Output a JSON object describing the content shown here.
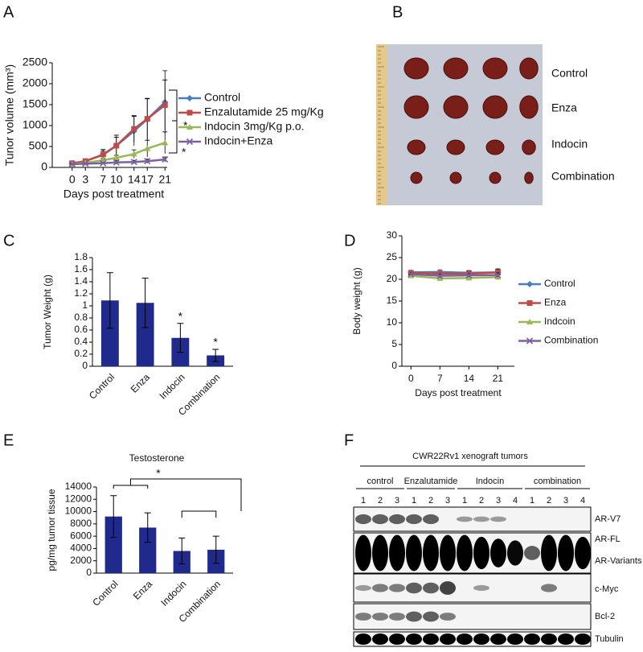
{
  "chart_data": [
    {
      "type": "line",
      "label": "A",
      "ylabel": "Tunor volume (mm³)",
      "xlabel": "Days post treatment",
      "x": [
        0,
        3,
        7,
        10,
        14,
        17,
        21
      ],
      "xlim": [
        -4.5,
        21.5
      ],
      "xticks": [
        0,
        3,
        7,
        10,
        14,
        17,
        21
      ],
      "ylim": [
        0,
        2500
      ],
      "yticks": [
        0,
        500,
        1000,
        1500,
        2000,
        2500
      ],
      "series": [
        {
          "name": "Control",
          "color": "#4a7ebb",
          "values": [
            100,
            150,
            300,
            520,
            870,
            1150,
            1560
          ],
          "errors": [
            20,
            30,
            100,
            200,
            350,
            500,
            750
          ]
        },
        {
          "name": "Enzalutamide 25 mg/Kg",
          "color": "#be4b48",
          "values": [
            100,
            150,
            310,
            520,
            920,
            1160,
            1490
          ],
          "errors": [
            20,
            30,
            120,
            250,
            320,
            480,
            600
          ]
        },
        {
          "name": "Indocin 3mg/Kg p.o.",
          "color": "#98b954",
          "values": [
            80,
            110,
            170,
            230,
            320,
            450,
            590
          ],
          "errors": [
            10,
            20,
            40,
            60,
            100,
            200,
            260
          ]
        },
        {
          "name": "Indocin+Enza",
          "color": "#7d60a0",
          "values": [
            80,
            90,
            100,
            120,
            130,
            150,
            190
          ],
          "errors": [
            10,
            20,
            20,
            40,
            40,
            50,
            60
          ]
        }
      ],
      "annotations": [
        "*",
        "*"
      ],
      "legend": "right"
    },
    {
      "type": "bar",
      "label": "C",
      "ylabel": "Tumor Weight (g)",
      "color": "#1f2a8c",
      "categories": [
        "Control",
        "Enza",
        "Indocin",
        "Combination"
      ],
      "values": [
        1.09,
        1.05,
        0.47,
        0.18
      ],
      "errors": [
        0.46,
        0.41,
        0.24,
        0.1
      ],
      "ylim": [
        0,
        1.8
      ],
      "yticks": [
        0,
        0.2,
        0.4,
        0.6,
        0.8,
        1,
        1.2,
        1.4,
        1.6,
        1.8
      ],
      "annotations": [
        "*",
        "*"
      ]
    },
    {
      "type": "line",
      "label": "D",
      "ylabel": "Body weight (g)",
      "xlabel": "Days post treatment",
      "x": [
        0,
        7,
        14,
        21
      ],
      "xlim": [
        -2.2,
        25
      ],
      "xticks": [
        0,
        7,
        14,
        21
      ],
      "ylim": [
        0,
        30
      ],
      "yticks": [
        0,
        5,
        10,
        15,
        20,
        25,
        30
      ],
      "series": [
        {
          "name": "Control",
          "color": "#4a7ebb",
          "values": [
            21.6,
            21.7,
            21.5,
            21.6
          ],
          "errors": [
            0.4,
            0.4,
            0.5,
            0.6
          ]
        },
        {
          "name": "Enza",
          "color": "#be4b48",
          "values": [
            21.5,
            21.3,
            21.3,
            21.6
          ],
          "errors": [
            0.4,
            0.5,
            0.5,
            0.8
          ]
        },
        {
          "name": "Indcoin",
          "color": "#98b954",
          "values": [
            20.8,
            20.2,
            20.3,
            20.5
          ],
          "errors": [
            0.3,
            0.5,
            0.5,
            0.6
          ]
        },
        {
          "name": "Combination",
          "color": "#7d60a0",
          "values": [
            21.2,
            20.8,
            20.9,
            21.0
          ],
          "errors": [
            0.3,
            0.4,
            0.4,
            0.5
          ]
        }
      ],
      "legend": "right"
    },
    {
      "type": "bar",
      "label": "E",
      "title": "Testosterone",
      "ylabel": "pg/mg tumor tissue",
      "color": "#1f2a8c",
      "categories": [
        "Control",
        "Enza",
        "Indocin",
        "Combination"
      ],
      "values": [
        9200,
        7400,
        3600,
        3800
      ],
      "errors": [
        3400,
        2400,
        2100,
        2200
      ],
      "ylim": [
        0,
        14000
      ],
      "yticks": [
        0,
        2000,
        4000,
        6000,
        8000,
        10000,
        12000,
        14000
      ],
      "annotations": [
        "*"
      ]
    }
  ],
  "photo": {
    "label": "B",
    "rows": [
      "Control",
      "Enza",
      "Indocin",
      "Combination"
    ]
  },
  "blot": {
    "label": "F",
    "header": "CWR22Rv1 xenograft tumors",
    "groups": [
      {
        "name": "control",
        "lanes": [
          1,
          2,
          3
        ]
      },
      {
        "name": "Enzalutamide",
        "lanes": [
          1,
          2,
          3
        ]
      },
      {
        "name": "Indocin",
        "lanes": [
          1,
          2,
          3,
          4
        ]
      },
      {
        "name": "combination",
        "lanes": [
          1,
          2,
          3,
          4
        ]
      }
    ],
    "rows": [
      "AR-V7",
      "AR-FL",
      "AR-Variants",
      "c-Myc",
      "Bcl-2",
      "Tubulin"
    ]
  }
}
